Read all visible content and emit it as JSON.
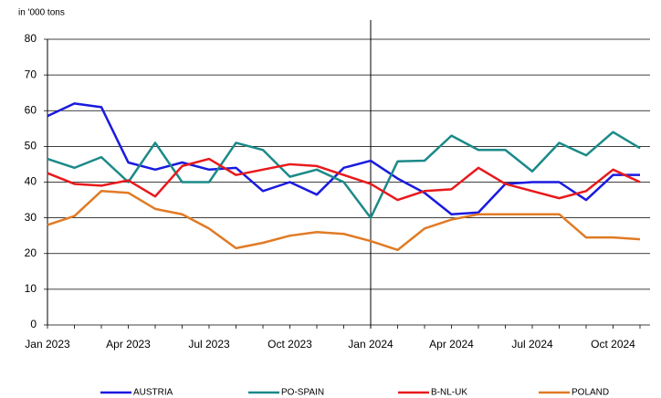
{
  "chart_data": {
    "type": "line",
    "y_label": "in '000 tons",
    "categories": [
      "Jan 2023",
      null,
      null,
      "Apr 2023",
      null,
      null,
      "Jul 2023",
      null,
      null,
      "Oct 2023",
      null,
      null,
      "Jan 2024",
      null,
      null,
      "Apr 2024",
      null,
      null,
      "Jul 2024",
      null,
      null,
      "Oct 2024",
      null
    ],
    "series": [
      {
        "name": "AUSTRIA",
        "color": "#1a1ae0",
        "values": [
          58.5,
          62,
          61,
          45.5,
          43.5,
          45.5,
          43.5,
          44,
          37.5,
          40,
          36.5,
          44,
          46,
          41,
          37,
          31,
          31.5,
          39.5,
          40,
          40,
          35,
          42,
          42
        ]
      },
      {
        "name": "PO-SPAIN",
        "color": "#1b8a88",
        "values": [
          46.5,
          44,
          47,
          40,
          51,
          40,
          40,
          51,
          49,
          41.5,
          43.5,
          40,
          30,
          45.8,
          46,
          53,
          49,
          49,
          43,
          51,
          47.5,
          54,
          49.5
        ]
      },
      {
        "name": "B-NL-UK",
        "color": "#e8191c",
        "values": [
          42.5,
          39.5,
          39,
          40.5,
          36,
          44.5,
          46.5,
          42,
          43.5,
          45,
          44.5,
          42,
          39.5,
          35,
          37.5,
          38,
          44,
          39.5,
          37.5,
          35.5,
          37.5,
          43.5,
          40
        ]
      },
      {
        "name": "POLAND",
        "color": "#e07b25",
        "values": [
          28,
          30.5,
          37.5,
          37,
          32.5,
          31,
          27,
          21.5,
          23,
          25,
          26,
          25.5,
          23.5,
          21,
          27,
          29.5,
          31,
          31,
          31,
          31,
          24.5,
          24.5,
          24
        ]
      }
    ],
    "ylim": [
      0,
      80
    ],
    "yticks": [
      0,
      10,
      20,
      30,
      40,
      50,
      60,
      70,
      80
    ],
    "grid": true
  }
}
